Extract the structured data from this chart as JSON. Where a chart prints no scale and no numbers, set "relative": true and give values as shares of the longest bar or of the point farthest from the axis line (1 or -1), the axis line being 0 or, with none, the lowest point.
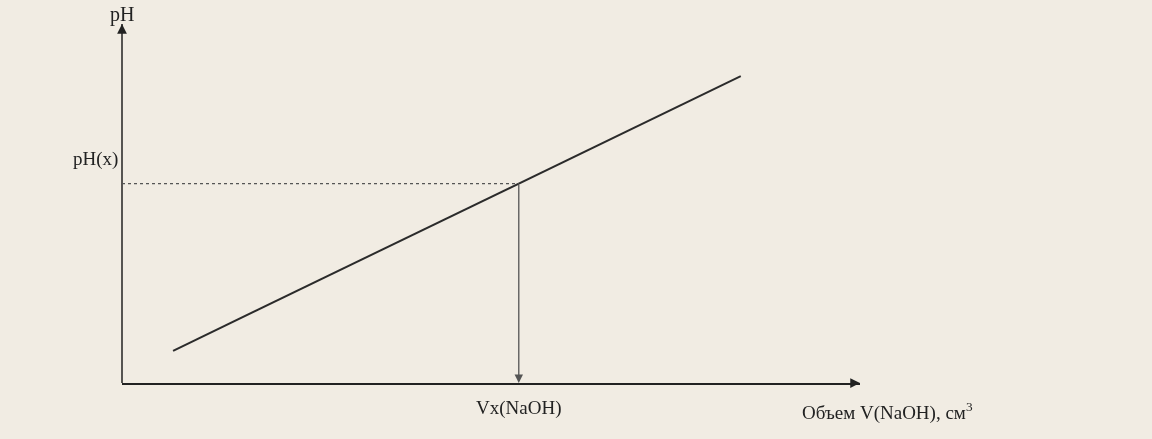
{
  "chart_data": {
    "type": "line",
    "relative": true,
    "xlabel": "Объем V(NaOH), см$^{3}$",
    "ylabel": "pH",
    "categories": [
      null,
      null
    ],
    "series": [
      {
        "color": "#2b2b2b",
        "values": [
          0.105,
          1
        ]
      }
    ],
    "ref_lines": [
      {
        "axis": "y",
        "value": 0.65,
        "label": "pH(x)",
        "color": "#555555",
        "line_style": "dotted"
      }
    ],
    "annotations": [
      "Vx(NaOH)"
    ],
    "marker": "none",
    "line_style": "solid"
  }
}
